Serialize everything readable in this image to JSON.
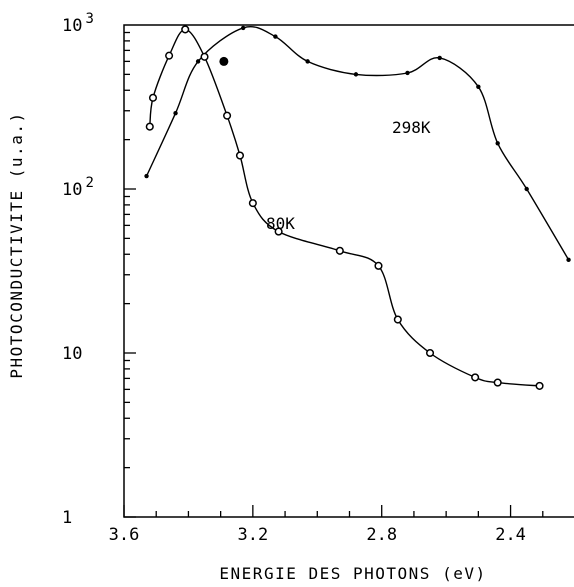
{
  "chart_data": {
    "type": "line",
    "title": "",
    "xlabel": "ENERGIE DES PHOTONS (eV)",
    "ylabel": "PHOTOCONDUCTIVITE (u.a.)",
    "x_scale": "linear",
    "x_reversed": true,
    "xlim": [
      3.6,
      2.2
    ],
    "y_scale": "log",
    "ylim": [
      1,
      1000
    ],
    "grid": false,
    "x_ticks": [
      {
        "value": 3.6,
        "label": "3.6"
      },
      {
        "value": 3.2,
        "label": "3.2"
      },
      {
        "value": 2.8,
        "label": "2.8"
      },
      {
        "value": 2.4,
        "label": "2.4"
      }
    ],
    "y_ticks": [
      {
        "value": 1,
        "base": "1",
        "exp": ""
      },
      {
        "value": 10,
        "base": "10",
        "exp": ""
      },
      {
        "value": 100,
        "base": "10",
        "exp": "2"
      },
      {
        "value": 1000,
        "base": "10",
        "exp": "3"
      }
    ],
    "series": [
      {
        "name": "298 K",
        "marker": "dot",
        "color": "#000000",
        "x": [
          3.53,
          3.44,
          3.37,
          3.23,
          3.13,
          3.03,
          2.88,
          2.72,
          2.62,
          2.5,
          2.44,
          2.35,
          2.22
        ],
        "y": [
          120,
          290,
          600,
          960,
          850,
          600,
          500,
          510,
          630,
          420,
          190,
          100,
          37
        ]
      },
      {
        "name": "80 K",
        "marker": "circle",
        "color": "#000000",
        "x": [
          3.52,
          3.51,
          3.46,
          3.41,
          3.35,
          3.28,
          3.24,
          3.2,
          3.12,
          2.93,
          2.81,
          2.75,
          2.65,
          2.51,
          2.44,
          2.31
        ],
        "y": [
          240,
          360,
          650,
          940,
          640,
          280,
          160,
          82,
          55,
          42,
          34,
          16,
          10,
          7.1,
          6.6,
          6.3
        ]
      }
    ],
    "annotations": [
      {
        "text": "298K",
        "series": "298 K"
      },
      {
        "text": "80K",
        "series": "80 K"
      }
    ]
  }
}
